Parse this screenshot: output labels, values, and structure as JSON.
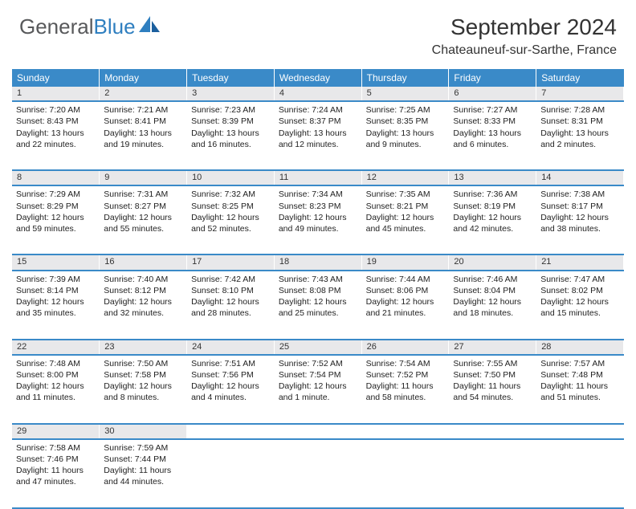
{
  "logo": {
    "text1": "General",
    "text2": "Blue"
  },
  "title": "September 2024",
  "location": "Chateauneuf-sur-Sarthe, France",
  "colors": {
    "header_bg": "#3a8ac8",
    "header_text": "#ffffff",
    "daynum_bg": "#e8e8ea",
    "row_border": "#3a8ac8",
    "logo_gray": "#58595b",
    "logo_blue": "#2f7fc0"
  },
  "weekdays": [
    "Sunday",
    "Monday",
    "Tuesday",
    "Wednesday",
    "Thursday",
    "Friday",
    "Saturday"
  ],
  "weeks": [
    {
      "nums": [
        "1",
        "2",
        "3",
        "4",
        "5",
        "6",
        "7"
      ],
      "cells": [
        {
          "sr": "Sunrise: 7:20 AM",
          "ss": "Sunset: 8:43 PM",
          "dl1": "Daylight: 13 hours",
          "dl2": "and 22 minutes."
        },
        {
          "sr": "Sunrise: 7:21 AM",
          "ss": "Sunset: 8:41 PM",
          "dl1": "Daylight: 13 hours",
          "dl2": "and 19 minutes."
        },
        {
          "sr": "Sunrise: 7:23 AM",
          "ss": "Sunset: 8:39 PM",
          "dl1": "Daylight: 13 hours",
          "dl2": "and 16 minutes."
        },
        {
          "sr": "Sunrise: 7:24 AM",
          "ss": "Sunset: 8:37 PM",
          "dl1": "Daylight: 13 hours",
          "dl2": "and 12 minutes."
        },
        {
          "sr": "Sunrise: 7:25 AM",
          "ss": "Sunset: 8:35 PM",
          "dl1": "Daylight: 13 hours",
          "dl2": "and 9 minutes."
        },
        {
          "sr": "Sunrise: 7:27 AM",
          "ss": "Sunset: 8:33 PM",
          "dl1": "Daylight: 13 hours",
          "dl2": "and 6 minutes."
        },
        {
          "sr": "Sunrise: 7:28 AM",
          "ss": "Sunset: 8:31 PM",
          "dl1": "Daylight: 13 hours",
          "dl2": "and 2 minutes."
        }
      ]
    },
    {
      "nums": [
        "8",
        "9",
        "10",
        "11",
        "12",
        "13",
        "14"
      ],
      "cells": [
        {
          "sr": "Sunrise: 7:29 AM",
          "ss": "Sunset: 8:29 PM",
          "dl1": "Daylight: 12 hours",
          "dl2": "and 59 minutes."
        },
        {
          "sr": "Sunrise: 7:31 AM",
          "ss": "Sunset: 8:27 PM",
          "dl1": "Daylight: 12 hours",
          "dl2": "and 55 minutes."
        },
        {
          "sr": "Sunrise: 7:32 AM",
          "ss": "Sunset: 8:25 PM",
          "dl1": "Daylight: 12 hours",
          "dl2": "and 52 minutes."
        },
        {
          "sr": "Sunrise: 7:34 AM",
          "ss": "Sunset: 8:23 PM",
          "dl1": "Daylight: 12 hours",
          "dl2": "and 49 minutes."
        },
        {
          "sr": "Sunrise: 7:35 AM",
          "ss": "Sunset: 8:21 PM",
          "dl1": "Daylight: 12 hours",
          "dl2": "and 45 minutes."
        },
        {
          "sr": "Sunrise: 7:36 AM",
          "ss": "Sunset: 8:19 PM",
          "dl1": "Daylight: 12 hours",
          "dl2": "and 42 minutes."
        },
        {
          "sr": "Sunrise: 7:38 AM",
          "ss": "Sunset: 8:17 PM",
          "dl1": "Daylight: 12 hours",
          "dl2": "and 38 minutes."
        }
      ]
    },
    {
      "nums": [
        "15",
        "16",
        "17",
        "18",
        "19",
        "20",
        "21"
      ],
      "cells": [
        {
          "sr": "Sunrise: 7:39 AM",
          "ss": "Sunset: 8:14 PM",
          "dl1": "Daylight: 12 hours",
          "dl2": "and 35 minutes."
        },
        {
          "sr": "Sunrise: 7:40 AM",
          "ss": "Sunset: 8:12 PM",
          "dl1": "Daylight: 12 hours",
          "dl2": "and 32 minutes."
        },
        {
          "sr": "Sunrise: 7:42 AM",
          "ss": "Sunset: 8:10 PM",
          "dl1": "Daylight: 12 hours",
          "dl2": "and 28 minutes."
        },
        {
          "sr": "Sunrise: 7:43 AM",
          "ss": "Sunset: 8:08 PM",
          "dl1": "Daylight: 12 hours",
          "dl2": "and 25 minutes."
        },
        {
          "sr": "Sunrise: 7:44 AM",
          "ss": "Sunset: 8:06 PM",
          "dl1": "Daylight: 12 hours",
          "dl2": "and 21 minutes."
        },
        {
          "sr": "Sunrise: 7:46 AM",
          "ss": "Sunset: 8:04 PM",
          "dl1": "Daylight: 12 hours",
          "dl2": "and 18 minutes."
        },
        {
          "sr": "Sunrise: 7:47 AM",
          "ss": "Sunset: 8:02 PM",
          "dl1": "Daylight: 12 hours",
          "dl2": "and 15 minutes."
        }
      ]
    },
    {
      "nums": [
        "22",
        "23",
        "24",
        "25",
        "26",
        "27",
        "28"
      ],
      "cells": [
        {
          "sr": "Sunrise: 7:48 AM",
          "ss": "Sunset: 8:00 PM",
          "dl1": "Daylight: 12 hours",
          "dl2": "and 11 minutes."
        },
        {
          "sr": "Sunrise: 7:50 AM",
          "ss": "Sunset: 7:58 PM",
          "dl1": "Daylight: 12 hours",
          "dl2": "and 8 minutes."
        },
        {
          "sr": "Sunrise: 7:51 AM",
          "ss": "Sunset: 7:56 PM",
          "dl1": "Daylight: 12 hours",
          "dl2": "and 4 minutes."
        },
        {
          "sr": "Sunrise: 7:52 AM",
          "ss": "Sunset: 7:54 PM",
          "dl1": "Daylight: 12 hours",
          "dl2": "and 1 minute."
        },
        {
          "sr": "Sunrise: 7:54 AM",
          "ss": "Sunset: 7:52 PM",
          "dl1": "Daylight: 11 hours",
          "dl2": "and 58 minutes."
        },
        {
          "sr": "Sunrise: 7:55 AM",
          "ss": "Sunset: 7:50 PM",
          "dl1": "Daylight: 11 hours",
          "dl2": "and 54 minutes."
        },
        {
          "sr": "Sunrise: 7:57 AM",
          "ss": "Sunset: 7:48 PM",
          "dl1": "Daylight: 11 hours",
          "dl2": "and 51 minutes."
        }
      ]
    },
    {
      "nums": [
        "29",
        "30",
        "",
        "",
        "",
        "",
        ""
      ],
      "cells": [
        {
          "sr": "Sunrise: 7:58 AM",
          "ss": "Sunset: 7:46 PM",
          "dl1": "Daylight: 11 hours",
          "dl2": "and 47 minutes."
        },
        {
          "sr": "Sunrise: 7:59 AM",
          "ss": "Sunset: 7:44 PM",
          "dl1": "Daylight: 11 hours",
          "dl2": "and 44 minutes."
        },
        null,
        null,
        null,
        null,
        null
      ]
    }
  ]
}
